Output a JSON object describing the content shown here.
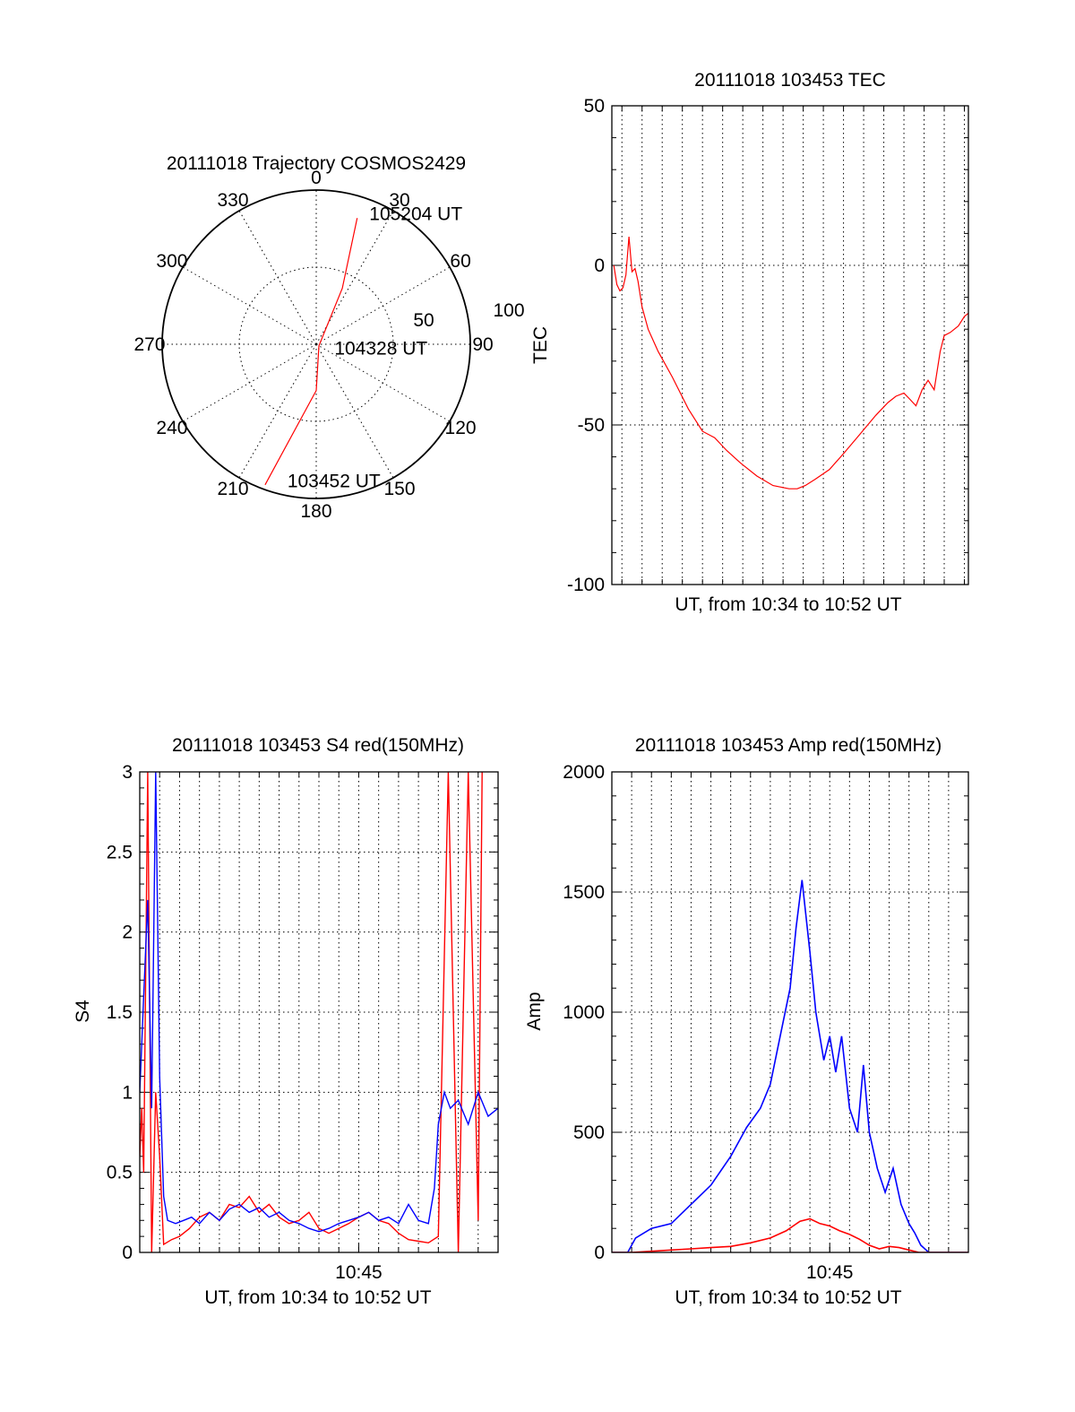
{
  "chart_data": [
    {
      "id": "trajectory",
      "type": "polar",
      "title": "20111018 Trajectory COSMOS2429",
      "angle_labels": [
        "0",
        "30",
        "60",
        "90",
        "120",
        "150",
        "180",
        "210",
        "240",
        "270",
        "300",
        "330"
      ],
      "radial_labels": [
        "50",
        "100"
      ],
      "rmax": 100,
      "track_color": "#ff0000",
      "track": [
        {
          "az": 200,
          "r": 97
        },
        {
          "az": 180,
          "r": 30
        },
        {
          "az": 120,
          "r": 2
        },
        {
          "az": 25,
          "r": 40
        },
        {
          "az": 18,
          "r": 86
        }
      ],
      "annotations": [
        {
          "text": "105204 UT",
          "az": 22,
          "r": 92
        },
        {
          "text": "104328 UT",
          "az": 100,
          "r": 12
        },
        {
          "text": "103452 UT",
          "az": 192,
          "r": 90
        }
      ]
    },
    {
      "id": "tec",
      "type": "line",
      "title": "20111018 103453 TEC",
      "xlabel": "UT, from 10:34 to 10:52 UT",
      "ylabel": "TEC",
      "ylim": [
        -100,
        50
      ],
      "yticks": [
        "-100",
        "-50",
        "0",
        "50"
      ],
      "xlim_min": [
        34.5,
        52.2
      ],
      "grid": true,
      "series": [
        {
          "name": "TEC",
          "color": "#ff0000",
          "x": [
            34.6,
            34.75,
            34.9,
            35.05,
            35.2,
            35.35,
            35.5,
            35.65,
            35.8,
            36.0,
            36.3,
            36.8,
            37.5,
            38.3,
            39.0,
            39.6,
            40.2,
            40.9,
            41.7,
            42.5,
            43.3,
            43.7,
            44.1,
            44.6,
            45.3,
            46.0,
            46.8,
            47.6,
            48.2,
            48.6,
            49.0,
            49.3,
            49.6,
            49.9,
            50.2,
            50.5,
            50.8,
            51.0,
            51.3,
            51.7,
            52.0,
            52.2
          ],
          "y": [
            0,
            -6,
            -8,
            -7,
            -3,
            9,
            -2,
            -1,
            -5,
            -13,
            -20,
            -27,
            -35,
            -45,
            -52,
            -54,
            -58,
            -62,
            -66,
            -69,
            -70,
            -70,
            -69,
            -67,
            -64,
            -59,
            -53,
            -47,
            -43,
            -41,
            -40,
            -42,
            -44,
            -39,
            -36,
            -39,
            -27,
            -22,
            -21,
            -19,
            -16,
            -15
          ]
        }
      ]
    },
    {
      "id": "s4",
      "type": "line",
      "title": "20111018 103453 S4 red(150MHz)",
      "xlabel": "UT, from 10:34 to 10:52 UT",
      "ylabel": "S4",
      "ylim": [
        0,
        3
      ],
      "yticks": [
        "0",
        "0.5",
        "1",
        "1.5",
        "2",
        "2.5",
        "3"
      ],
      "xtick_label": "10:45",
      "xtick_value": 45,
      "xlim_min": [
        34,
        52
      ],
      "grid": true,
      "series": [
        {
          "name": "S4 red",
          "color": "#ff0000",
          "x": [
            34.0,
            34.1,
            34.2,
            34.4,
            34.6,
            34.8,
            35.0,
            35.2,
            35.6,
            36.0,
            36.5,
            37.0,
            37.5,
            38.0,
            38.5,
            39.0,
            39.5,
            40.0,
            40.5,
            41.0,
            41.5,
            42.0,
            42.5,
            43.0,
            43.5,
            44.0,
            44.5,
            45.0,
            45.5,
            46.0,
            46.5,
            47.0,
            47.5,
            48.0,
            48.5,
            49.0,
            49.5,
            50.0,
            50.5,
            51.0,
            51.2
          ],
          "y": [
            0.6,
            0.9,
            0.5,
            3.0,
            0.0,
            1.0,
            0.6,
            0.05,
            0.08,
            0.1,
            0.15,
            0.22,
            0.25,
            0.2,
            0.3,
            0.28,
            0.35,
            0.25,
            0.3,
            0.22,
            0.18,
            0.2,
            0.25,
            0.15,
            0.12,
            0.15,
            0.18,
            0.22,
            0.25,
            0.2,
            0.18,
            0.12,
            0.08,
            0.07,
            0.06,
            0.1,
            3.0,
            0.0,
            3.0,
            0.2,
            3.0
          ]
        },
        {
          "name": "S4 blue",
          "color": "#0000ff",
          "x": [
            34.0,
            34.2,
            34.4,
            34.6,
            34.8,
            35.0,
            35.2,
            35.4,
            35.8,
            36.2,
            36.6,
            37.0,
            37.5,
            38.0,
            38.5,
            39.0,
            39.5,
            40.0,
            40.5,
            41.0,
            41.5,
            42.0,
            42.5,
            43.0,
            43.5,
            44.0,
            44.5,
            45.0,
            45.5,
            46.0,
            46.5,
            47.0,
            47.5,
            48.0,
            48.5,
            48.8,
            49.0,
            49.3,
            49.6,
            50.0,
            50.5,
            51.0,
            51.5,
            52.0
          ],
          "y": [
            1.0,
            1.6,
            2.2,
            0.9,
            3.0,
            1.1,
            0.35,
            0.2,
            0.18,
            0.2,
            0.22,
            0.18,
            0.25,
            0.2,
            0.27,
            0.3,
            0.25,
            0.28,
            0.22,
            0.25,
            0.2,
            0.18,
            0.15,
            0.13,
            0.15,
            0.18,
            0.2,
            0.22,
            0.25,
            0.2,
            0.22,
            0.18,
            0.3,
            0.2,
            0.18,
            0.4,
            0.8,
            1.0,
            0.9,
            0.95,
            0.8,
            1.0,
            0.85,
            0.9
          ]
        }
      ]
    },
    {
      "id": "amp",
      "type": "line",
      "title": "20111018 103453 Amp red(150MHz)",
      "xlabel": "UT, from 10:34 to 10:52 UT",
      "ylabel": "Amp",
      "ylim": [
        0,
        2000
      ],
      "yticks": [
        "0",
        "500",
        "1000",
        "1500",
        "2000"
      ],
      "xtick_label": "10:45",
      "xtick_value": 45,
      "xlim_min": [
        34,
        52
      ],
      "grid": true,
      "series": [
        {
          "name": "Amp blue",
          "color": "#0000ff",
          "x": [
            34.0,
            34.8,
            35.2,
            36.0,
            37.0,
            38.0,
            39.0,
            40.0,
            40.8,
            41.5,
            42.0,
            42.5,
            43.0,
            43.3,
            43.6,
            44.0,
            44.3,
            44.7,
            45.0,
            45.3,
            45.6,
            46.0,
            46.4,
            46.7,
            47.0,
            47.4,
            47.8,
            48.2,
            48.6,
            49.0,
            49.3,
            49.6,
            50.0,
            52.0
          ],
          "y": [
            0,
            0,
            60,
            100,
            120,
            200,
            280,
            400,
            520,
            600,
            700,
            900,
            1100,
            1350,
            1550,
            1250,
            1000,
            800,
            900,
            750,
            900,
            600,
            500,
            780,
            500,
            350,
            250,
            350,
            200,
            120,
            80,
            30,
            0,
            0
          ]
        },
        {
          "name": "Amp red",
          "color": "#ff0000",
          "x": [
            34.0,
            35.0,
            36.0,
            37.0,
            38.0,
            39.0,
            40.0,
            41.0,
            42.0,
            42.8,
            43.5,
            44.0,
            44.5,
            45.0,
            45.5,
            46.0,
            46.5,
            47.0,
            47.5,
            48.0,
            48.5,
            49.0,
            49.5,
            50.0,
            52.0
          ],
          "y": [
            0,
            0,
            5,
            10,
            15,
            20,
            25,
            40,
            60,
            90,
            130,
            140,
            120,
            110,
            90,
            75,
            55,
            30,
            15,
            25,
            20,
            10,
            0,
            0,
            0
          ]
        }
      ]
    }
  ]
}
